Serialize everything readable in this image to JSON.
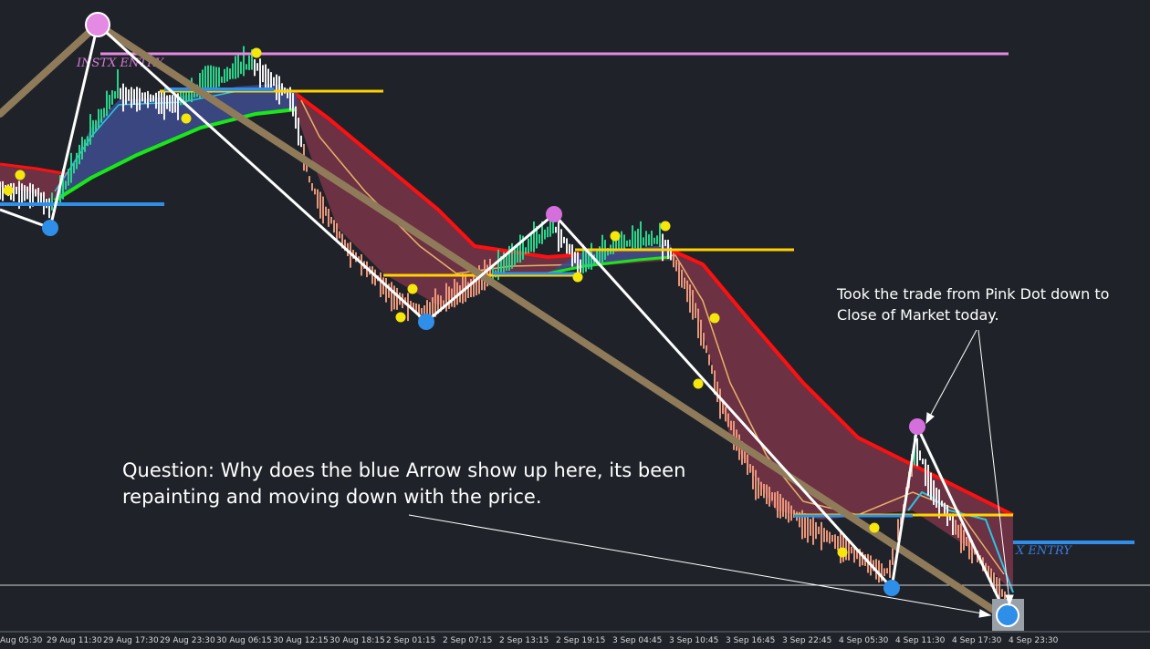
{
  "x_axis": {
    "labels": [
      "Aug 05:30",
      "29 Aug 11:30",
      "29 Aug 17:30",
      "29 Aug 23:30",
      "30 Aug 06:15",
      "30 Aug 12:15",
      "30 Aug 18:15",
      "2 Sep 01:15",
      "2 Sep 07:15",
      "2 Sep 13:15",
      "2 Sep 19:15",
      "3 Sep 04:45",
      "3 Sep 10:45",
      "3 Sep 16:45",
      "3 Sep 22:45",
      "4 Sep 05:30",
      "4 Sep 11:30",
      "4 Sep 17:30",
      "4 Sep 23:30"
    ]
  },
  "indicator_labels": [
    "INSTX ENTRY",
    "X ENTRY"
  ],
  "annotations": {
    "trade_note": [
      "Took the trade from Pink Dot down to",
      "Close of Market today."
    ],
    "question": [
      "Question: Why does the blue Arrow show up here, its been",
      "repainting and moving down with the price."
    ]
  }
}
